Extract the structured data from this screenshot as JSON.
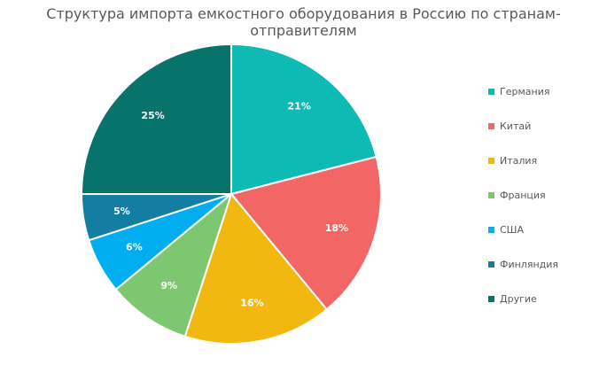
{
  "chart_data": {
    "type": "pie",
    "title": "Структура импорта емкостного оборудования в Россию по странам-отправителям",
    "categories": [
      "Германия",
      "Китай",
      "Италия",
      "Франция",
      "США",
      "Финляндия",
      "Другие"
    ],
    "values": [
      21,
      18,
      16,
      9,
      6,
      5,
      25
    ],
    "value_labels": [
      "21%",
      "18%",
      "16%",
      "9%",
      "6%",
      "5%",
      "25%"
    ],
    "colors": [
      "#0dbbb4",
      "#f26666",
      "#f2b810",
      "#7dc771",
      "#00aeef",
      "#137ea1",
      "#07736b"
    ],
    "start_angle": "12 o'clock",
    "direction": "clockwise",
    "legend_position": "right"
  }
}
